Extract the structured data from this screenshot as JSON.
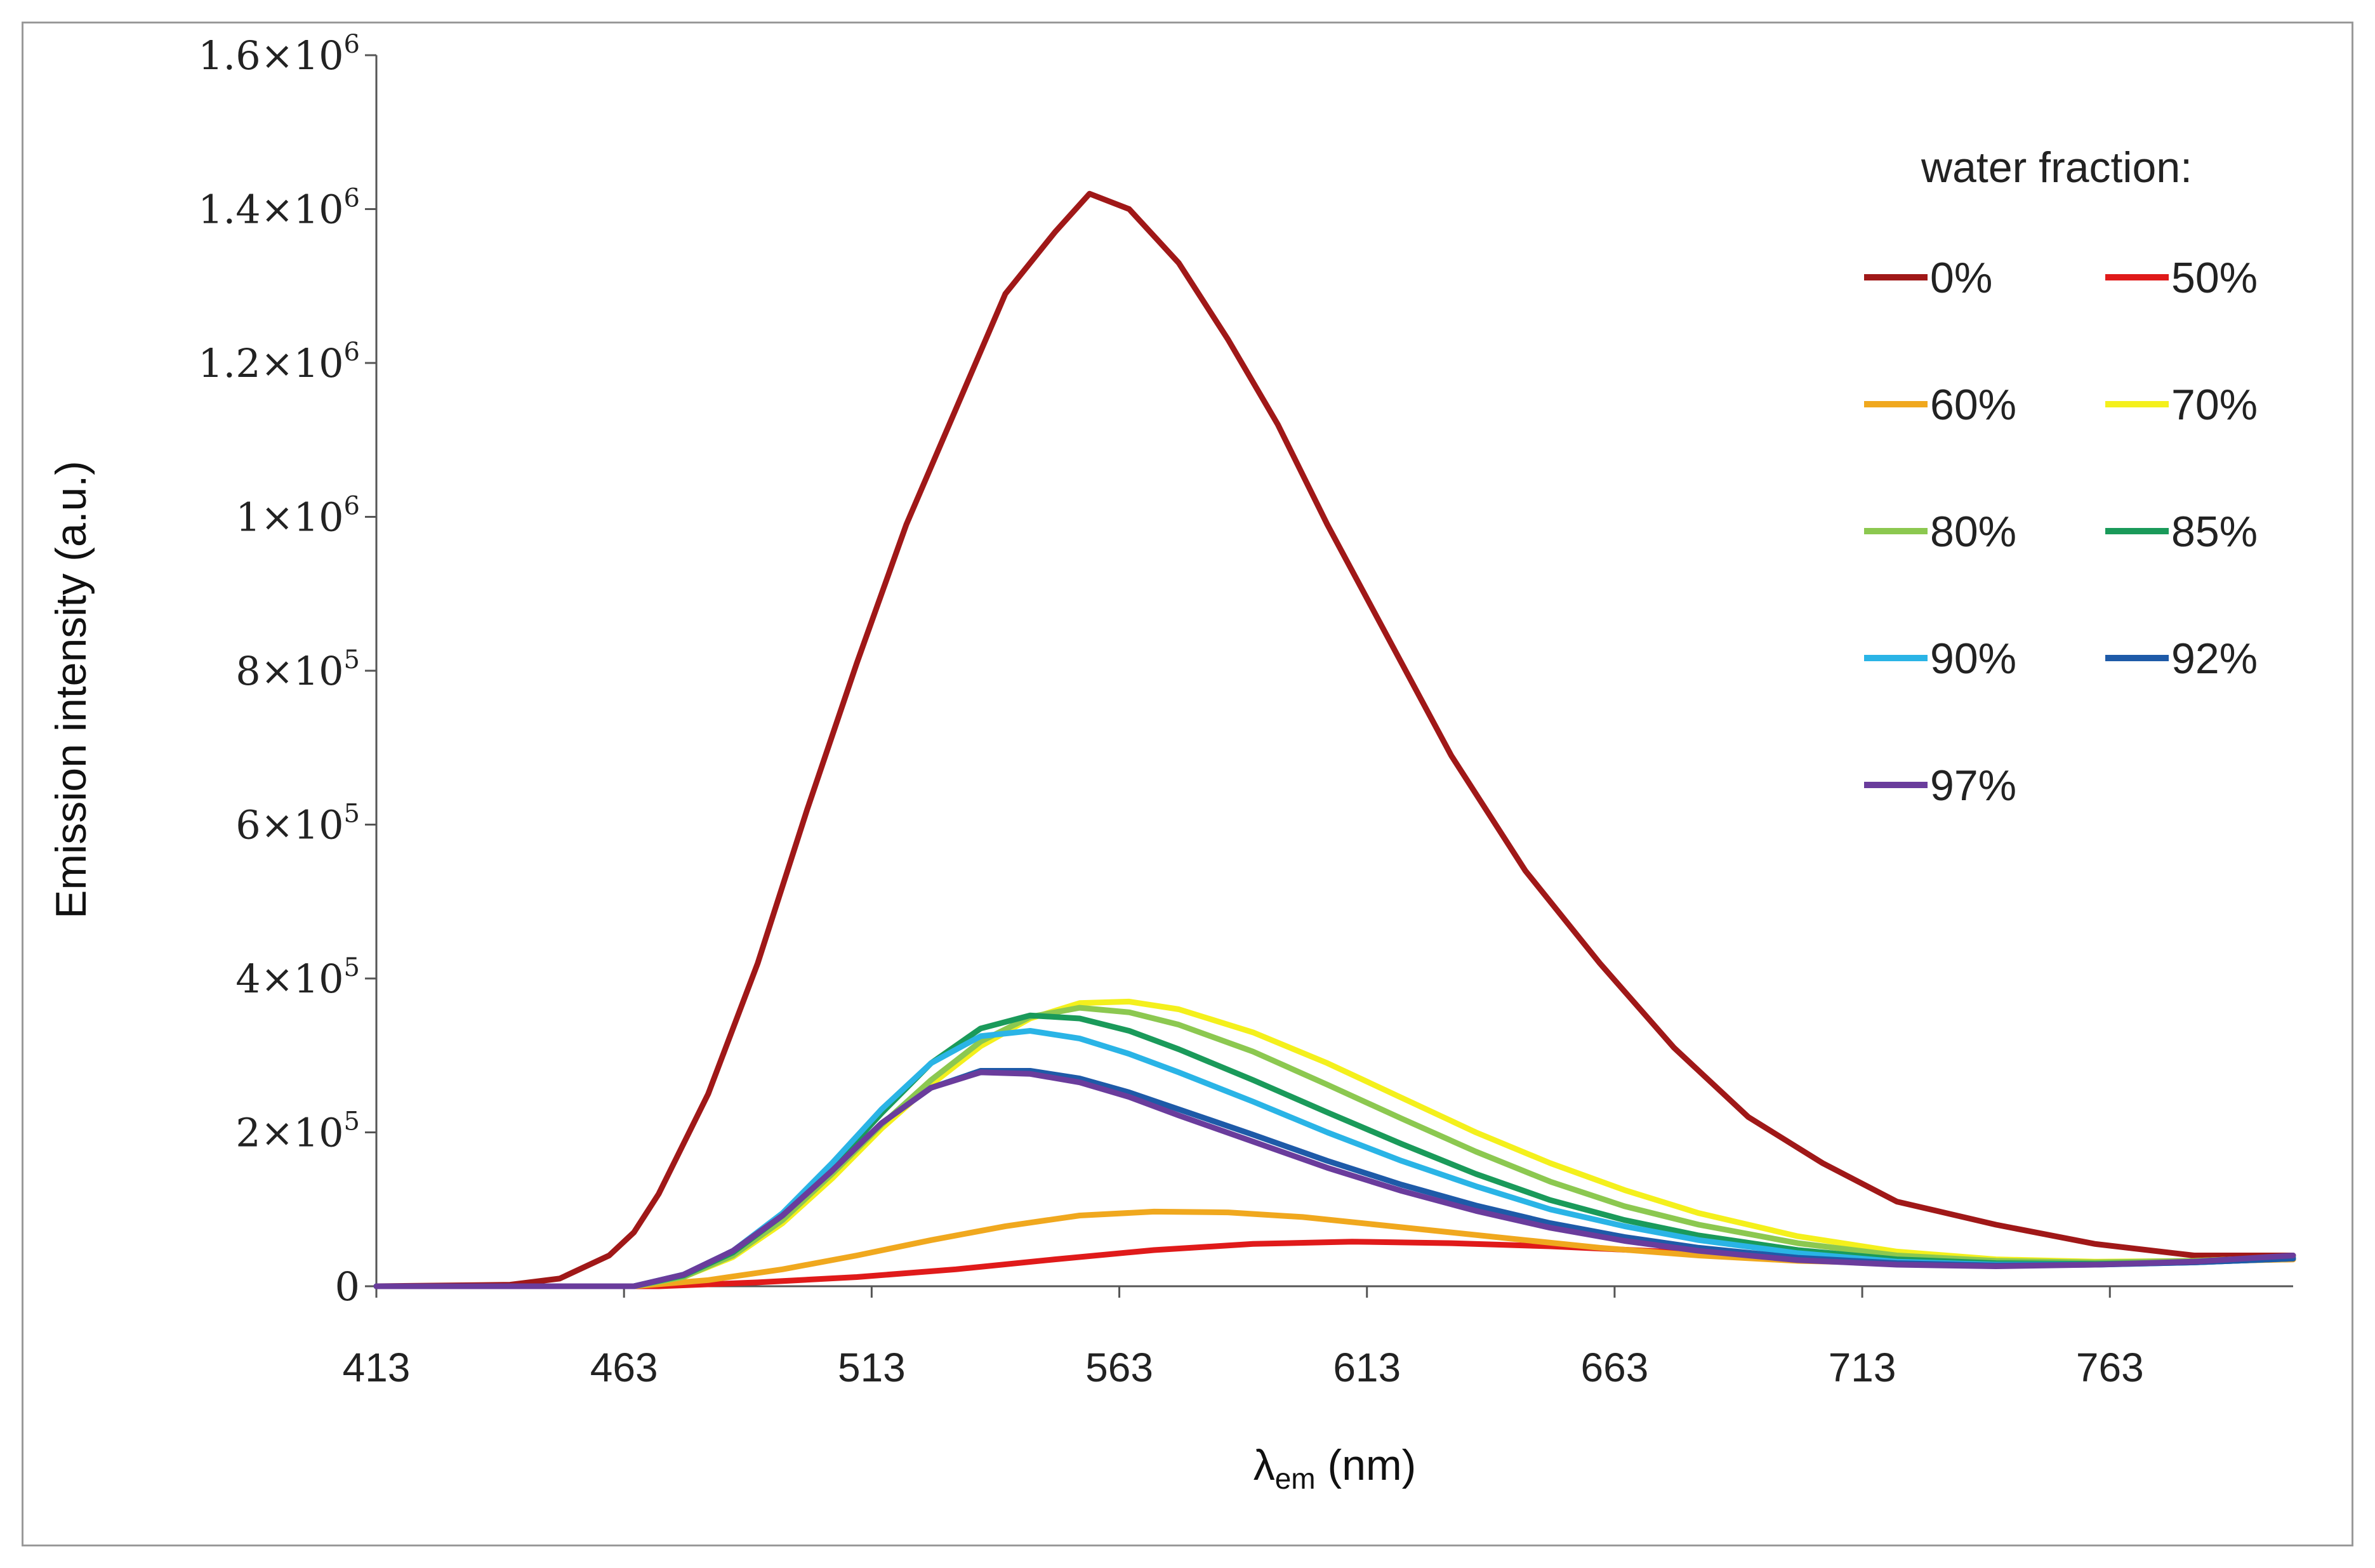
{
  "chart_data": {
    "type": "line",
    "title": "",
    "xlabel_main": "λ",
    "xlabel_sub": "em",
    "xlabel_unit": " (nm)",
    "ylabel": "Emission intensity (a.u.)",
    "xlim": [
      413,
      800
    ],
    "ylim": [
      0,
      1600000
    ],
    "x_ticks": [
      413,
      463,
      513,
      563,
      613,
      663,
      713,
      763
    ],
    "y_ticks": [
      {
        "value": 0,
        "mantissa": "0",
        "exponent": ""
      },
      {
        "value": 200000,
        "mantissa": "2×10",
        "exponent": "5"
      },
      {
        "value": 400000,
        "mantissa": "4×10",
        "exponent": "5"
      },
      {
        "value": 600000,
        "mantissa": "6×10",
        "exponent": "5"
      },
      {
        "value": 800000,
        "mantissa": "8×10",
        "exponent": "5"
      },
      {
        "value": 1000000,
        "mantissa": "1×10",
        "exponent": "6"
      },
      {
        "value": 1200000,
        "mantissa": "1.2×10",
        "exponent": "6"
      },
      {
        "value": 1400000,
        "mantissa": "1.4×10",
        "exponent": "6"
      },
      {
        "value": 1600000,
        "mantissa": "1.6×10",
        "exponent": "6"
      }
    ],
    "legend_title": "water fraction:",
    "legend_position": "top-right",
    "series": [
      {
        "name": "0%",
        "color": "#a01818",
        "x": [
          413,
          440,
          450,
          460,
          465,
          470,
          480,
          490,
          500,
          510,
          520,
          530,
          540,
          550,
          557,
          565,
          575,
          585,
          595,
          605,
          615,
          630,
          645,
          660,
          675,
          690,
          705,
          720,
          740,
          760,
          780,
          800
        ],
        "y": [
          0,
          2000,
          10000,
          40000,
          70000,
          120000,
          250000,
          420000,
          620000,
          810000,
          990000,
          1140000,
          1290000,
          1370000,
          1420000,
          1400000,
          1330000,
          1230000,
          1120000,
          990000,
          870000,
          690000,
          540000,
          420000,
          310000,
          220000,
          160000,
          110000,
          80000,
          55000,
          40000,
          40000
        ]
      },
      {
        "name": "50%",
        "color": "#e01a1a",
        "x": [
          413,
          470,
          490,
          510,
          530,
          550,
          570,
          590,
          610,
          630,
          650,
          670,
          690,
          710,
          730,
          750,
          770,
          790,
          800
        ],
        "y": [
          0,
          0,
          5000,
          12000,
          22000,
          35000,
          47000,
          55000,
          58000,
          56000,
          52000,
          46000,
          40000,
          35000,
          32000,
          31000,
          32000,
          34000,
          35000
        ]
      },
      {
        "name": "60%",
        "color": "#f0a81e",
        "x": [
          413,
          465,
          480,
          495,
          510,
          525,
          540,
          555,
          570,
          585,
          600,
          615,
          630,
          645,
          660,
          680,
          700,
          720,
          740,
          760,
          780,
          800
        ],
        "y": [
          0,
          0,
          8000,
          22000,
          40000,
          60000,
          78000,
          92000,
          97000,
          96000,
          90000,
          80000,
          70000,
          60000,
          50000,
          40000,
          33000,
          30000,
          29000,
          30000,
          32000,
          35000
        ]
      },
      {
        "name": "70%",
        "color": "#f4f01c",
        "x": [
          413,
          465,
          475,
          485,
          495,
          505,
          515,
          525,
          535,
          545,
          555,
          565,
          575,
          590,
          605,
          620,
          635,
          650,
          665,
          680,
          700,
          720,
          740,
          760,
          780,
          800
        ],
        "y": [
          0,
          0,
          12000,
          38000,
          82000,
          140000,
          205000,
          262000,
          312000,
          348000,
          368000,
          370000,
          360000,
          330000,
          290000,
          245000,
          200000,
          160000,
          125000,
          95000,
          65000,
          45000,
          35000,
          32000,
          33000,
          38000
        ]
      },
      {
        "name": "80%",
        "color": "#8cc850",
        "x": [
          413,
          465,
          475,
          485,
          495,
          505,
          515,
          525,
          535,
          545,
          555,
          565,
          575,
          590,
          605,
          620,
          635,
          650,
          665,
          680,
          700,
          720,
          740,
          760,
          780,
          800
        ],
        "y": [
          0,
          0,
          12000,
          40000,
          86000,
          146000,
          210000,
          268000,
          318000,
          350000,
          362000,
          356000,
          340000,
          305000,
          262000,
          218000,
          175000,
          136000,
          104000,
          80000,
          56000,
          40000,
          33000,
          31000,
          33000,
          38000
        ]
      },
      {
        "name": "85%",
        "color": "#1a9a5a",
        "x": [
          413,
          465,
          475,
          485,
          495,
          505,
          515,
          525,
          535,
          545,
          555,
          565,
          575,
          590,
          605,
          620,
          635,
          650,
          665,
          680,
          700,
          720,
          740,
          760,
          780,
          800
        ],
        "y": [
          0,
          0,
          14000,
          44000,
          92000,
          155000,
          225000,
          290000,
          335000,
          352000,
          348000,
          332000,
          308000,
          268000,
          226000,
          185000,
          146000,
          112000,
          86000,
          66000,
          47000,
          35000,
          30000,
          29000,
          31000,
          36000
        ]
      },
      {
        "name": "90%",
        "color": "#2ab4e6",
        "x": [
          413,
          465,
          475,
          485,
          495,
          505,
          515,
          525,
          535,
          545,
          555,
          565,
          575,
          590,
          605,
          620,
          635,
          650,
          665,
          680,
          700,
          720,
          740,
          760,
          780,
          800
        ],
        "y": [
          0,
          0,
          15000,
          46000,
          95000,
          160000,
          230000,
          290000,
          325000,
          332000,
          322000,
          302000,
          278000,
          240000,
          200000,
          163000,
          130000,
          100000,
          78000,
          60000,
          43000,
          32000,
          28000,
          28000,
          31000,
          36000
        ]
      },
      {
        "name": "92%",
        "color": "#1e5aa8",
        "x": [
          413,
          465,
          475,
          485,
          495,
          505,
          515,
          525,
          535,
          545,
          555,
          565,
          575,
          590,
          605,
          620,
          635,
          650,
          665,
          680,
          700,
          720,
          740,
          760,
          780,
          800
        ],
        "y": [
          0,
          0,
          15000,
          46000,
          92000,
          150000,
          212000,
          258000,
          280000,
          280000,
          270000,
          252000,
          230000,
          197000,
          163000,
          132000,
          105000,
          82000,
          64000,
          50000,
          37000,
          30000,
          27000,
          28000,
          31000,
          36000
        ]
      },
      {
        "name": "97%",
        "color": "#6a3c9c",
        "x": [
          413,
          465,
          475,
          485,
          495,
          505,
          515,
          525,
          535,
          545,
          555,
          565,
          575,
          590,
          605,
          620,
          635,
          650,
          665,
          680,
          700,
          720,
          740,
          760,
          780,
          800
        ],
        "y": [
          0,
          0,
          15000,
          46000,
          92000,
          150000,
          212000,
          258000,
          278000,
          276000,
          265000,
          246000,
          222000,
          188000,
          154000,
          124000,
          98000,
          76000,
          59000,
          46000,
          34000,
          28000,
          26000,
          28000,
          32000,
          40000
        ]
      }
    ]
  }
}
